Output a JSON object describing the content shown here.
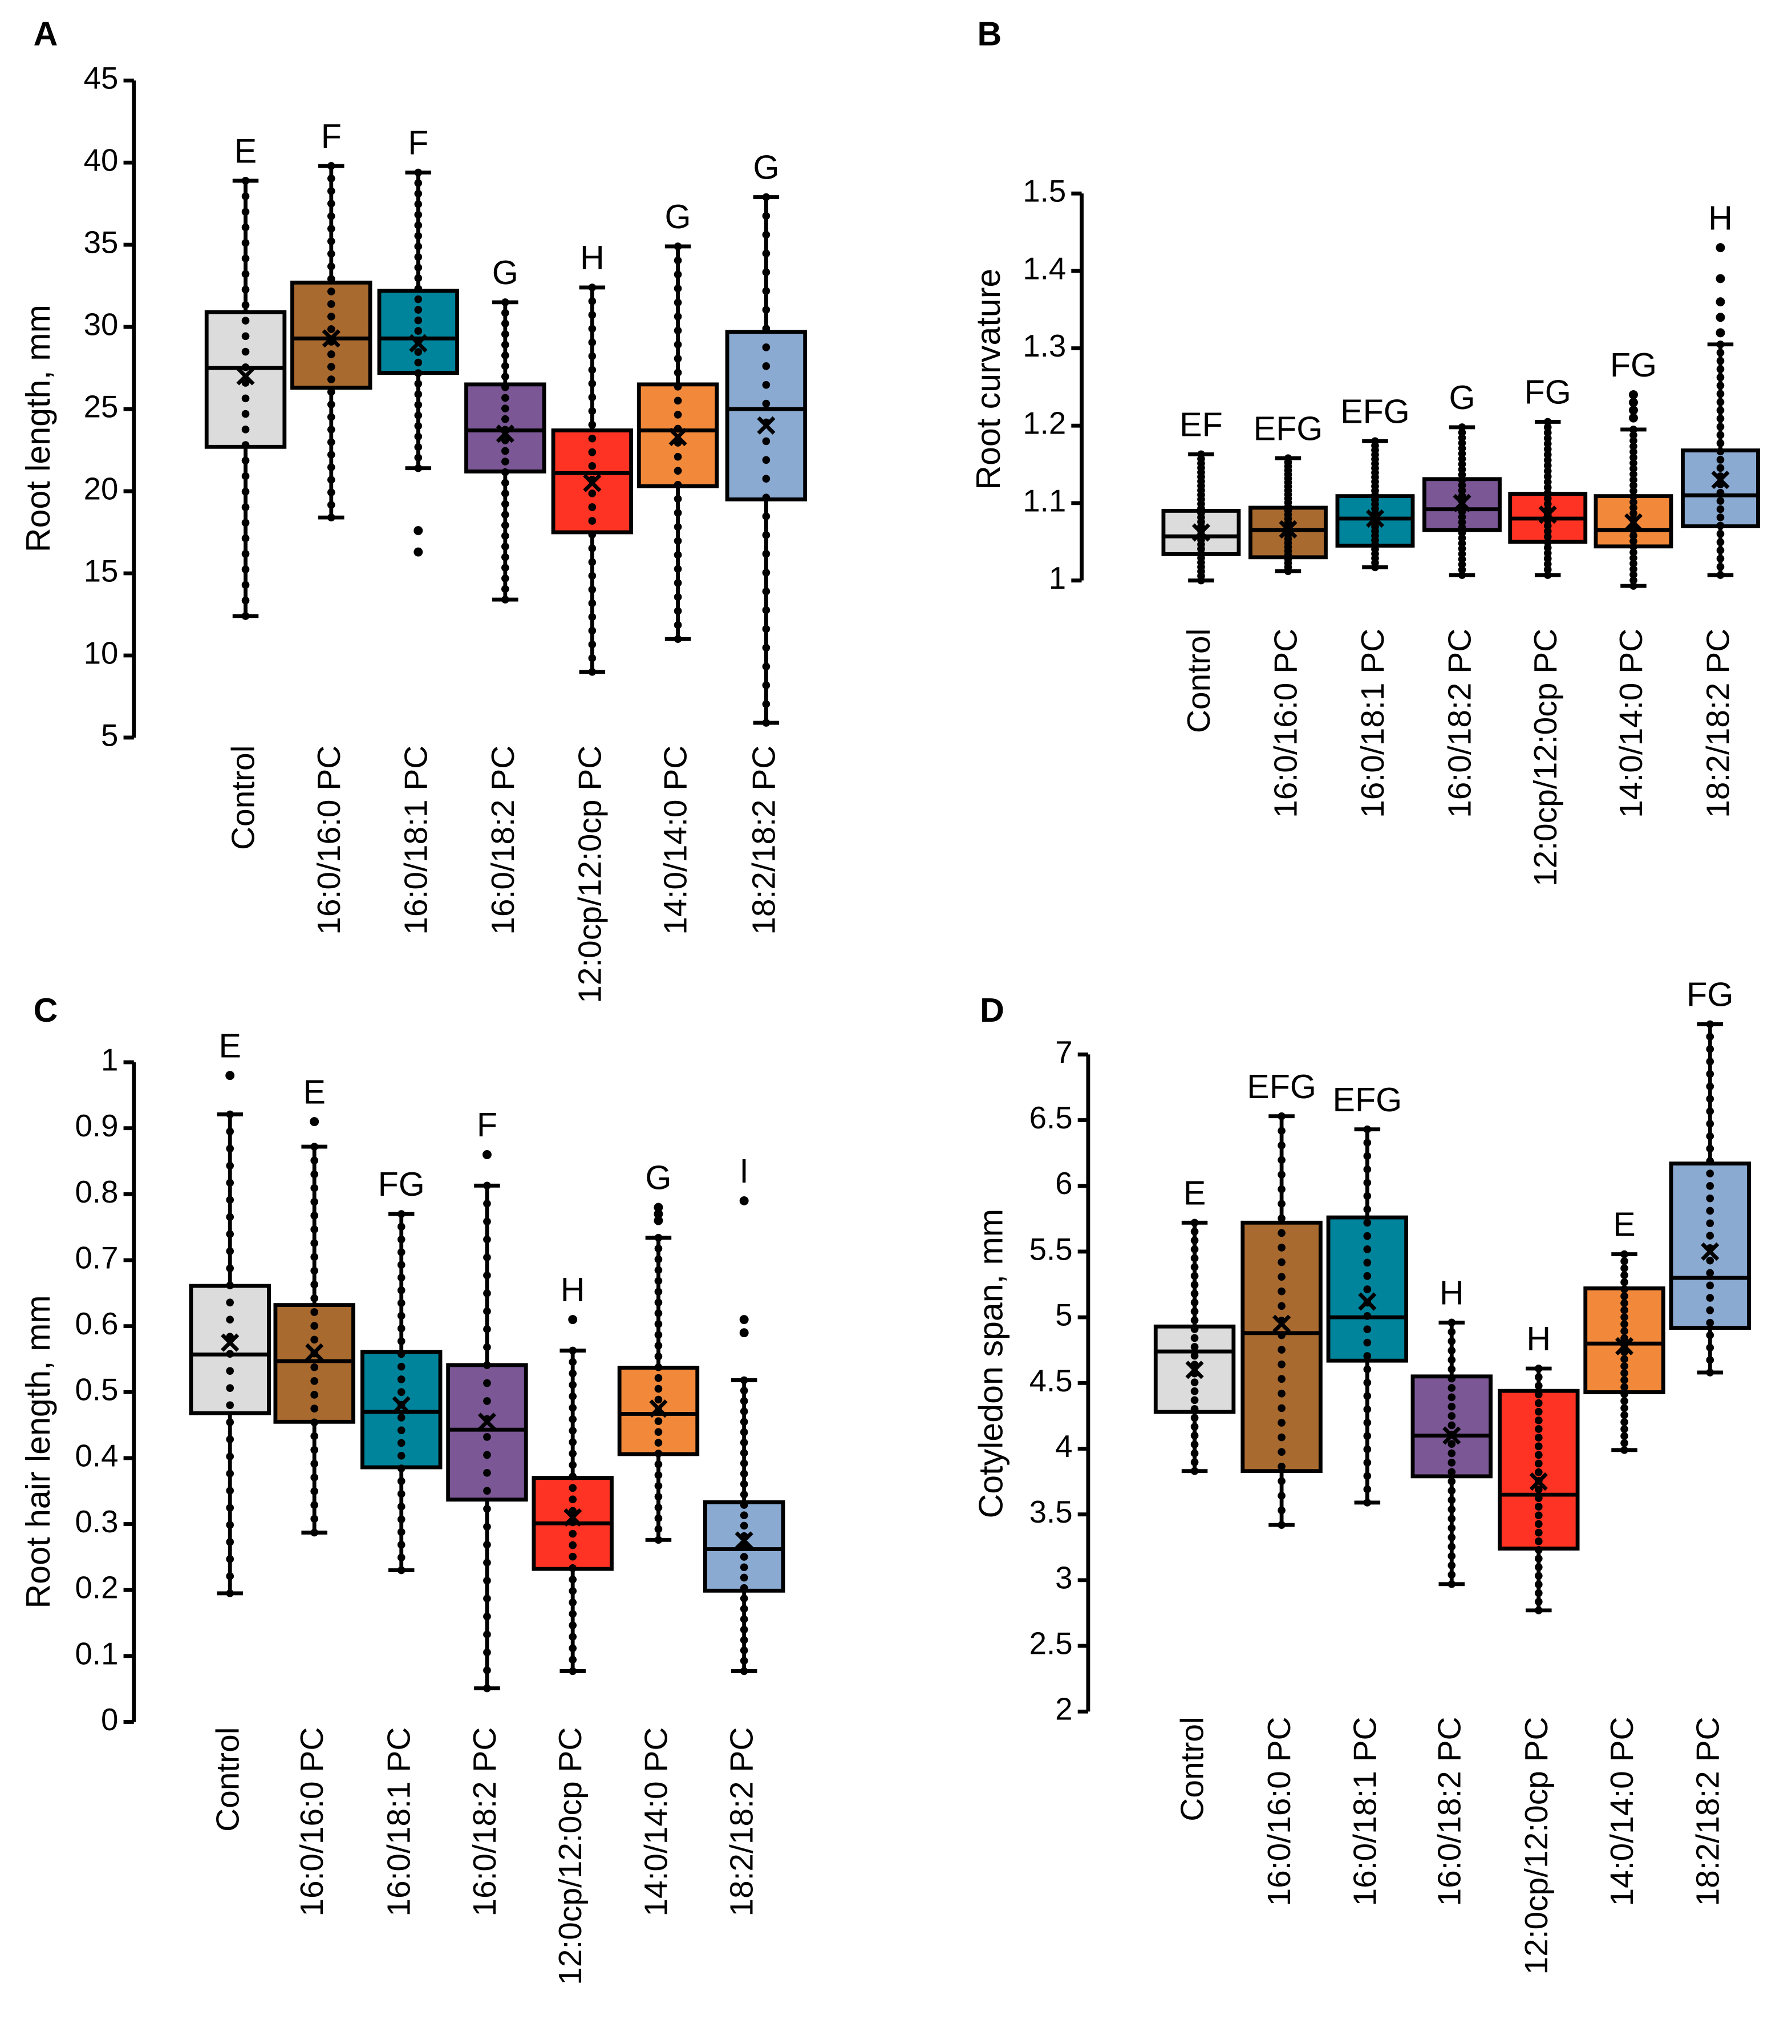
{
  "chart_data": [
    {
      "panel": "A",
      "type": "box",
      "ylabel": "Root length, mm",
      "ylim": [
        5,
        45
      ],
      "yticks": [
        5,
        10,
        15,
        20,
        25,
        30,
        35,
        40,
        45
      ],
      "categories": [
        "Control",
        "16:0/16:0 PC",
        "16:0/18:1 PC",
        "16:0/18:2 PC",
        "12:0cp/12:0cp PC",
        "14:0/14:0 PC",
        "18:2/18:2 PC"
      ],
      "colors": [
        "#dcdcdc",
        "#a96a30",
        "#00849c",
        "#7b5895",
        "#ff3324",
        "#f2893a",
        "#8aaad2"
      ],
      "boxes": [
        {
          "low": 12.4,
          "q1": 22.7,
          "median": 27.5,
          "q3": 30.9,
          "high": 38.9,
          "mean": 27.0,
          "outliers": [],
          "letter": "E"
        },
        {
          "low": 18.4,
          "q1": 26.3,
          "median": 29.3,
          "q3": 32.7,
          "high": 39.8,
          "mean": 29.3,
          "outliers": [],
          "letter": "F"
        },
        {
          "low": 21.4,
          "q1": 27.2,
          "median": 29.3,
          "q3": 32.2,
          "high": 39.4,
          "mean": 29.0,
          "outliers": [
            17.6,
            16.3
          ],
          "letter": "F"
        },
        {
          "low": 13.4,
          "q1": 21.2,
          "median": 23.7,
          "q3": 26.5,
          "high": 31.5,
          "mean": 23.5,
          "outliers": [],
          "letter": "G"
        },
        {
          "low": 9.0,
          "q1": 17.5,
          "median": 21.1,
          "q3": 23.7,
          "high": 32.4,
          "mean": 20.5,
          "outliers": [],
          "letter": "H"
        },
        {
          "low": 11.0,
          "q1": 20.3,
          "median": 23.7,
          "q3": 26.5,
          "high": 34.9,
          "mean": 23.3,
          "outliers": [],
          "letter": "G"
        },
        {
          "low": 5.9,
          "q1": 19.5,
          "median": 25.0,
          "q3": 29.7,
          "high": 37.9,
          "mean": 24.0,
          "outliers": [],
          "letter": "G"
        }
      ]
    },
    {
      "panel": "B",
      "type": "box",
      "ylabel": "Root curvature",
      "ylim": [
        1,
        1.5
      ],
      "yticks": [
        "1",
        "1.1",
        "1.2",
        "1.3",
        "1.4",
        "1.5"
      ],
      "categories": [
        "Control",
        "16:0/16:0 PC",
        "16:0/18:1 PC",
        "16:0/18:2 PC",
        "12:0cp/12:0cp PC",
        "14:0/14:0 PC",
        "18:2/18:2 PC"
      ],
      "colors": [
        "#dcdcdc",
        "#a96a30",
        "#00849c",
        "#7b5895",
        "#ff3324",
        "#f2893a",
        "#8aaad2"
      ],
      "boxes": [
        {
          "low": 1.0,
          "q1": 1.034,
          "median": 1.057,
          "q3": 1.09,
          "high": 1.163,
          "mean": 1.062,
          "outliers": [],
          "letter": "EF"
        },
        {
          "low": 1.012,
          "q1": 1.03,
          "median": 1.065,
          "q3": 1.094,
          "high": 1.158,
          "mean": 1.066,
          "outliers": [],
          "letter": "EFG"
        },
        {
          "low": 1.017,
          "q1": 1.045,
          "median": 1.08,
          "q3": 1.109,
          "high": 1.18,
          "mean": 1.08,
          "outliers": [],
          "letter": "EFG"
        },
        {
          "low": 1.007,
          "q1": 1.065,
          "median": 1.092,
          "q3": 1.131,
          "high": 1.198,
          "mean": 1.1,
          "outliers": [],
          "letter": "G"
        },
        {
          "low": 1.007,
          "q1": 1.05,
          "median": 1.08,
          "q3": 1.112,
          "high": 1.205,
          "mean": 1.085,
          "outliers": [],
          "letter": "FG"
        },
        {
          "low": 0.993,
          "q1": 1.044,
          "median": 1.065,
          "q3": 1.109,
          "high": 1.195,
          "mean": 1.075,
          "outliers": [
            1.21,
            1.22,
            1.23,
            1.24
          ],
          "letter": "FG"
        },
        {
          "low": 1.007,
          "q1": 1.07,
          "median": 1.11,
          "q3": 1.168,
          "high": 1.305,
          "mean": 1.13,
          "outliers": [
            1.32,
            1.34,
            1.36,
            1.39,
            1.43
          ],
          "letter": "H"
        }
      ]
    },
    {
      "panel": "C",
      "type": "box",
      "ylabel": "Root hair length, mm",
      "ylim": [
        0,
        1
      ],
      "yticks": [
        "0",
        "0.1",
        "0.2",
        "0.3",
        "0.4",
        "0.5",
        "0.6",
        "0.7",
        "0.8",
        "0.9",
        "1"
      ],
      "categories": [
        "Control",
        "16:0/16:0 PC",
        "16:0/18:1 PC",
        "16:0/18:2 PC",
        "12:0cp/12:0cp PC",
        "14:0/14:0 PC",
        "18:2/18:2 PC"
      ],
      "colors": [
        "#dcdcdc",
        "#a96a30",
        "#00849c",
        "#7b5895",
        "#ff3324",
        "#f2893a",
        "#8aaad2"
      ],
      "boxes": [
        {
          "low": 0.195,
          "q1": 0.468,
          "median": 0.557,
          "q3": 0.661,
          "high": 0.921,
          "mean": 0.575,
          "outliers": [
            0.98
          ],
          "letter": "E"
        },
        {
          "low": 0.287,
          "q1": 0.455,
          "median": 0.547,
          "q3": 0.632,
          "high": 0.872,
          "mean": 0.56,
          "outliers": [
            0.91
          ],
          "letter": "E"
        },
        {
          "low": 0.23,
          "q1": 0.386,
          "median": 0.47,
          "q3": 0.561,
          "high": 0.77,
          "mean": 0.48,
          "outliers": [],
          "letter": "FG"
        },
        {
          "low": 0.051,
          "q1": 0.337,
          "median": 0.443,
          "q3": 0.541,
          "high": 0.813,
          "mean": 0.455,
          "outliers": [
            0.86
          ],
          "letter": "F"
        },
        {
          "low": 0.077,
          "q1": 0.232,
          "median": 0.301,
          "q3": 0.37,
          "high": 0.563,
          "mean": 0.31,
          "outliers": [
            0.61
          ],
          "letter": "H"
        },
        {
          "low": 0.276,
          "q1": 0.406,
          "median": 0.467,
          "q3": 0.537,
          "high": 0.734,
          "mean": 0.475,
          "outliers": [
            0.76,
            0.77,
            0.78
          ],
          "letter": "G"
        },
        {
          "low": 0.077,
          "q1": 0.199,
          "median": 0.262,
          "q3": 0.333,
          "high": 0.518,
          "mean": 0.275,
          "outliers": [
            0.59,
            0.61,
            0.79
          ],
          "letter": "I"
        }
      ]
    },
    {
      "panel": "D",
      "type": "box",
      "ylabel": "Cotyledon span, mm",
      "ylim": [
        2,
        7
      ],
      "yticks": [
        "2",
        "2.5",
        "3",
        "3.5",
        "4",
        "4.5",
        "5",
        "5.5",
        "6",
        "6.5",
        "7"
      ],
      "categories": [
        "Control",
        "16:0/16:0 PC",
        "16:0/18:1 PC",
        "16:0/18:2 PC",
        "12:0cp/12:0cp PC",
        "14:0/14:0 PC",
        "18:2/18:2 PC"
      ],
      "colors": [
        "#dcdcdc",
        "#a96a30",
        "#00849c",
        "#7b5895",
        "#ff3324",
        "#f2893a",
        "#8aaad2"
      ],
      "boxes": [
        {
          "low": 3.83,
          "q1": 4.28,
          "median": 4.74,
          "q3": 4.93,
          "high": 5.72,
          "mean": 4.6,
          "outliers": [],
          "letter": "E"
        },
        {
          "low": 3.42,
          "q1": 3.83,
          "median": 4.88,
          "q3": 5.72,
          "high": 6.53,
          "mean": 4.95,
          "outliers": [],
          "letter": "EFG"
        },
        {
          "low": 3.59,
          "q1": 4.67,
          "median": 5.0,
          "q3": 5.76,
          "high": 6.43,
          "mean": 5.12,
          "outliers": [],
          "letter": "EFG"
        },
        {
          "low": 2.97,
          "q1": 3.79,
          "median": 4.1,
          "q3": 4.55,
          "high": 4.96,
          "mean": 4.1,
          "outliers": [],
          "letter": "H"
        },
        {
          "low": 2.77,
          "q1": 3.24,
          "median": 3.65,
          "q3": 4.44,
          "high": 4.61,
          "mean": 3.75,
          "outliers": [],
          "letter": "H"
        },
        {
          "low": 3.99,
          "q1": 4.43,
          "median": 4.8,
          "q3": 5.22,
          "high": 5.48,
          "mean": 4.78,
          "outliers": [],
          "letter": "E"
        },
        {
          "low": 4.58,
          "q1": 4.92,
          "median": 5.3,
          "q3": 6.17,
          "high": 7.23,
          "mean": 5.5,
          "outliers": [],
          "letter": "FG"
        }
      ]
    }
  ]
}
